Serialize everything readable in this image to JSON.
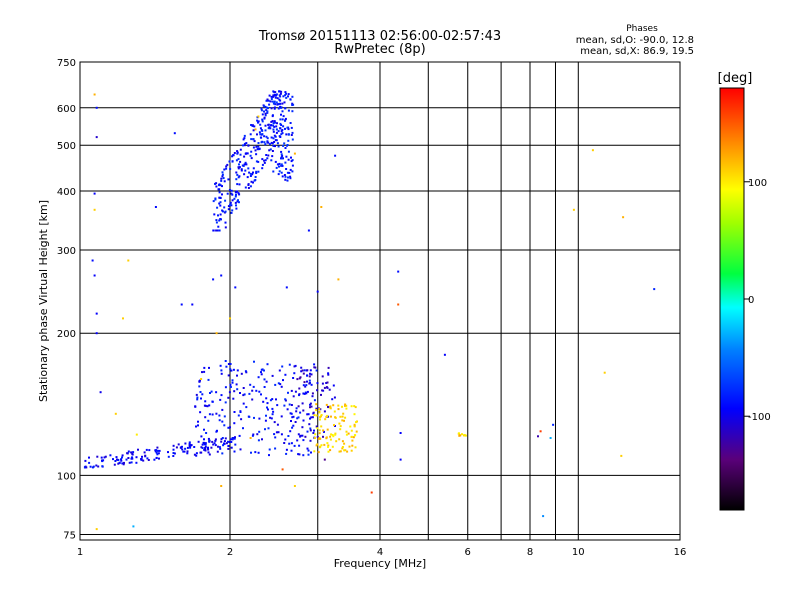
{
  "chart_data": {
    "type": "scatter",
    "title": "Tromsø 20151113 02:56:00-02:57:43",
    "subtitle": "RwPretec (8p)",
    "legend_block": {
      "heading": "Phases",
      "line1": "mean, sd,O: -90.0, 12.8",
      "line2": "mean, sd,X:  86.9, 19.5"
    },
    "xlabel": "Frequency [MHz]",
    "ylabel": "Stationary phase Virtual Height [km]",
    "x_scale": "log2",
    "y_scale": "log",
    "xlim": [
      1,
      16
    ],
    "ylim": [
      73,
      750
    ],
    "x_ticks": [
      1,
      2,
      4,
      6,
      8,
      10,
      16
    ],
    "x_ticklabels": [
      "1",
      "2",
      "4",
      "6",
      "8",
      "10",
      "16"
    ],
    "x_minor_ticks": [
      3,
      5,
      7,
      9
    ],
    "y_ticks": [
      75,
      100,
      200,
      300,
      400,
      500,
      600,
      750
    ],
    "y_ticklabels": [
      "75",
      "100",
      "200",
      "300",
      "400",
      "500",
      "600",
      "750"
    ],
    "grid": true,
    "colorbar": {
      "label": "[deg]",
      "range": [
        -180,
        180
      ],
      "ticks": [
        100,
        0,
        -100
      ],
      "ticklabels": [
        "100",
        "0",
        "-100"
      ]
    },
    "clusters": [
      {
        "name": "o-trace-low",
        "x0": 1.02,
        "x1": 2.05,
        "y0": 104,
        "y1": 120,
        "n": 160,
        "phase": -95,
        "shape": "rising"
      },
      {
        "name": "o-spread",
        "x0": 1.7,
        "x1": 3.0,
        "y0": 110,
        "y1": 175,
        "n": 260,
        "phase": -90,
        "shape": "box"
      },
      {
        "name": "o-spread-high",
        "x0": 2.7,
        "x1": 3.25,
        "y0": 120,
        "y1": 170,
        "n": 70,
        "phase": -110,
        "shape": "box"
      },
      {
        "name": "x-trace-low",
        "x0": 2.95,
        "x1": 3.6,
        "y0": 112,
        "y1": 142,
        "n": 110,
        "phase": 110,
        "shape": "box"
      },
      {
        "name": "f2-upper",
        "x0": 1.85,
        "x1": 2.55,
        "y0": 330,
        "y1": 650,
        "n": 300,
        "phase": -88,
        "shape": "rising"
      },
      {
        "name": "f2-columns",
        "x0": 2.42,
        "x1": 2.68,
        "y0": 420,
        "y1": 650,
        "n": 120,
        "phase": -85,
        "shape": "box"
      },
      {
        "name": "cusp-right",
        "x0": 5.75,
        "x1": 5.95,
        "y0": 121,
        "y1": 123,
        "n": 10,
        "phase": 110,
        "shape": "box"
      }
    ],
    "points": [
      {
        "x": 1.07,
        "y": 640,
        "phase": 120
      },
      {
        "x": 1.08,
        "y": 600,
        "phase": -90
      },
      {
        "x": 1.08,
        "y": 520,
        "phase": -110
      },
      {
        "x": 1.07,
        "y": 395,
        "phase": -95
      },
      {
        "x": 1.07,
        "y": 365,
        "phase": 110
      },
      {
        "x": 1.06,
        "y": 285,
        "phase": -90
      },
      {
        "x": 1.07,
        "y": 265,
        "phase": -95
      },
      {
        "x": 1.08,
        "y": 220,
        "phase": -95
      },
      {
        "x": 1.08,
        "y": 200,
        "phase": -95
      },
      {
        "x": 1.1,
        "y": 150,
        "phase": -100
      },
      {
        "x": 1.08,
        "y": 77,
        "phase": 110
      },
      {
        "x": 1.28,
        "y": 78,
        "phase": -30
      },
      {
        "x": 1.25,
        "y": 285,
        "phase": 110
      },
      {
        "x": 1.22,
        "y": 215,
        "phase": 110
      },
      {
        "x": 1.42,
        "y": 370,
        "phase": -90
      },
      {
        "x": 1.55,
        "y": 530,
        "phase": -90
      },
      {
        "x": 1.6,
        "y": 230,
        "phase": -90
      },
      {
        "x": 1.68,
        "y": 230,
        "phase": -95
      },
      {
        "x": 1.85,
        "y": 260,
        "phase": -90
      },
      {
        "x": 1.92,
        "y": 265,
        "phase": -90
      },
      {
        "x": 2.05,
        "y": 250,
        "phase": -90
      },
      {
        "x": 2.0,
        "y": 215,
        "phase": 110
      },
      {
        "x": 2.28,
        "y": 575,
        "phase": 110
      },
      {
        "x": 2.25,
        "y": 540,
        "phase": 120
      },
      {
        "x": 2.7,
        "y": 480,
        "phase": 120
      },
      {
        "x": 2.88,
        "y": 330,
        "phase": -90
      },
      {
        "x": 3.05,
        "y": 370,
        "phase": 120
      },
      {
        "x": 3.25,
        "y": 475,
        "phase": -90
      },
      {
        "x": 3.3,
        "y": 260,
        "phase": 120
      },
      {
        "x": 3.0,
        "y": 245,
        "phase": -95
      },
      {
        "x": 2.6,
        "y": 250,
        "phase": -90
      },
      {
        "x": 1.92,
        "y": 95,
        "phase": 120
      },
      {
        "x": 2.7,
        "y": 95,
        "phase": 110
      },
      {
        "x": 2.55,
        "y": 103,
        "phase": 150
      },
      {
        "x": 3.85,
        "y": 92,
        "phase": 160
      },
      {
        "x": 4.35,
        "y": 270,
        "phase": -90
      },
      {
        "x": 4.35,
        "y": 230,
        "phase": 150
      },
      {
        "x": 4.4,
        "y": 123,
        "phase": -95
      },
      {
        "x": 4.4,
        "y": 108,
        "phase": -95
      },
      {
        "x": 5.4,
        "y": 180,
        "phase": -95
      },
      {
        "x": 8.3,
        "y": 121,
        "phase": -120
      },
      {
        "x": 8.4,
        "y": 124,
        "phase": 160
      },
      {
        "x": 8.8,
        "y": 120,
        "phase": -30
      },
      {
        "x": 8.9,
        "y": 128,
        "phase": -80
      },
      {
        "x": 8.5,
        "y": 82,
        "phase": -40
      },
      {
        "x": 9.8,
        "y": 365,
        "phase": 110
      },
      {
        "x": 10.7,
        "y": 488,
        "phase": 110
      },
      {
        "x": 12.3,
        "y": 352,
        "phase": 120
      },
      {
        "x": 11.3,
        "y": 165,
        "phase": 110
      },
      {
        "x": 12.2,
        "y": 110,
        "phase": 110
      },
      {
        "x": 14.2,
        "y": 248,
        "phase": -80
      },
      {
        "x": 1.3,
        "y": 122,
        "phase": 100
      },
      {
        "x": 1.18,
        "y": 135,
        "phase": 110
      },
      {
        "x": 1.75,
        "y": 160,
        "phase": 110
      },
      {
        "x": 1.88,
        "y": 200,
        "phase": 120
      },
      {
        "x": 2.2,
        "y": 120,
        "phase": 120
      },
      {
        "x": 3.1,
        "y": 108,
        "phase": -130
      }
    ]
  }
}
